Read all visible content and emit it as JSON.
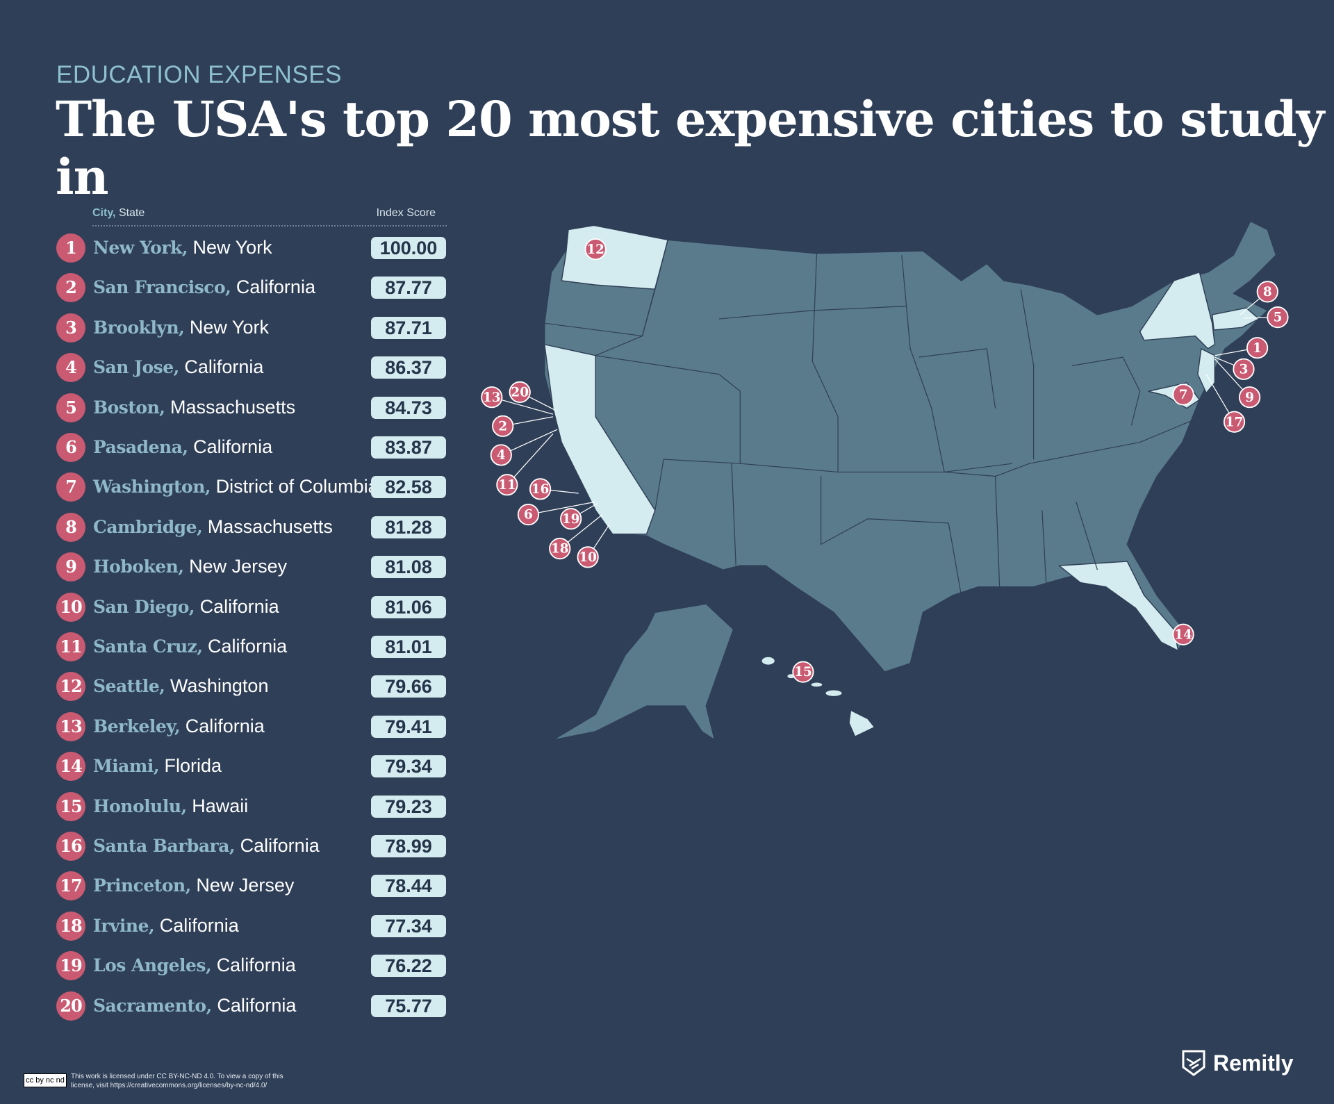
{
  "header": {
    "kicker": "EDUCATION EXPENSES",
    "title": "The USA's top 20 most expensive cities to study in"
  },
  "table": {
    "col_city": "City,",
    "col_state": "State",
    "col_score": "Index Score"
  },
  "colors": {
    "background": "#2f3f57",
    "highlight_state": "#d4ecef",
    "other_state": "#5a7b8c",
    "marker": "#c95a72",
    "city_text": "#8fb8c8"
  },
  "chart_data": {
    "type": "table",
    "title": "The USA's top 20 most expensive cities to study in",
    "highlighted_states": [
      "Washington",
      "California",
      "New York",
      "Massachusetts",
      "New Jersey",
      "District of Columbia",
      "Florida",
      "Hawaii"
    ],
    "rows": [
      {
        "rank": "1",
        "city": "New York,",
        "state": "New York",
        "score": "100.00"
      },
      {
        "rank": "2",
        "city": "San Francisco,",
        "state": "California",
        "score": "87.77"
      },
      {
        "rank": "3",
        "city": "Brooklyn,",
        "state": "New York",
        "score": "87.71"
      },
      {
        "rank": "4",
        "city": "San Jose,",
        "state": "California",
        "score": "86.37"
      },
      {
        "rank": "5",
        "city": "Boston,",
        "state": "Massachusetts",
        "score": "84.73"
      },
      {
        "rank": "6",
        "city": "Pasadena,",
        "state": "California",
        "score": "83.87"
      },
      {
        "rank": "7",
        "city": "Washington,",
        "state": "District of Columbia",
        "score": "82.58"
      },
      {
        "rank": "8",
        "city": "Cambridge,",
        "state": "Massachusetts",
        "score": "81.28"
      },
      {
        "rank": "9",
        "city": "Hoboken,",
        "state": "New Jersey",
        "score": "81.08"
      },
      {
        "rank": "10",
        "city": "San Diego,",
        "state": "California",
        "score": "81.06"
      },
      {
        "rank": "11",
        "city": "Santa Cruz,",
        "state": "California",
        "score": "81.01"
      },
      {
        "rank": "12",
        "city": "Seattle,",
        "state": "Washington",
        "score": "79.66"
      },
      {
        "rank": "13",
        "city": "Berkeley,",
        "state": "California",
        "score": "79.41"
      },
      {
        "rank": "14",
        "city": "Miami,",
        "state": "Florida",
        "score": "79.34"
      },
      {
        "rank": "15",
        "city": "Honolulu,",
        "state": "Hawaii",
        "score": "79.23"
      },
      {
        "rank": "16",
        "city": "Santa Barbara,",
        "state": "California",
        "score": "78.99"
      },
      {
        "rank": "17",
        "city": "Princeton,",
        "state": "New Jersey",
        "score": "78.44"
      },
      {
        "rank": "18",
        "city": "Irvine,",
        "state": "California",
        "score": "77.34"
      },
      {
        "rank": "19",
        "city": "Los Angeles,",
        "state": "California",
        "score": "76.22"
      },
      {
        "rank": "20",
        "city": "Sacramento,",
        "state": "California",
        "score": "75.77"
      }
    ]
  },
  "footer": {
    "license_badge": "cc by nc nd",
    "license_text": "This work is licensed under CC BY-NC-ND 4.0. To view a copy of this license, visit https://creativecommons.org/licenses/by-nc-nd/4.0/",
    "brand": "Remitly"
  }
}
